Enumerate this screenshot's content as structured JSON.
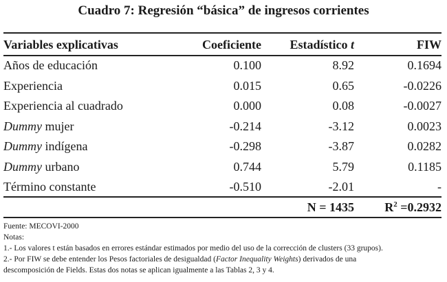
{
  "title": "Cuadro 7: Regresión “básica” de ingresos corrientes",
  "headers": {
    "variables": "Variables explicativas",
    "coef": "Coeficiente",
    "stat_prefix": "Estadístico ",
    "stat_italic": "t",
    "fiw": "FIW"
  },
  "rows": [
    {
      "var_italic": "",
      "var_text": "Años de educación",
      "coef": "0.100",
      "stat": "8.92",
      "fiw": "0.1694"
    },
    {
      "var_italic": "",
      "var_text": "Experiencia",
      "coef": "0.015",
      "stat": "0.65",
      "fiw": "-0.0226"
    },
    {
      "var_italic": "",
      "var_text": "Experiencia al cuadrado",
      "coef": "0.000",
      "stat": "0.08",
      "fiw": "-0.0027"
    },
    {
      "var_italic": "Dummy",
      "var_text": " mujer",
      "coef": "-0.214",
      "stat": "-3.12",
      "fiw": "0.0023"
    },
    {
      "var_italic": "Dummy",
      "var_text": " indígena",
      "coef": "-0.298",
      "stat": "-3.87",
      "fiw": "0.0282"
    },
    {
      "var_italic": "Dummy",
      "var_text": " urbano",
      "coef": "0.744",
      "stat": "5.79",
      "fiw": "0.1185"
    },
    {
      "var_italic": "",
      "var_text": "Término constante",
      "coef": "-0.510",
      "stat": "-2.01",
      "fiw": "-"
    }
  ],
  "summary": {
    "n": "N = 1435",
    "r2_prefix": "R",
    "r2_sup": "2",
    "r2_value": " =0.2932"
  },
  "notes": {
    "source": "Fuente: MECOVI-2000",
    "heading": "Notas:",
    "note1": "1.- Los valores t están basados en errores estándar estimados por medio del uso de la corrección de clusters (33 grupos).",
    "note2_a": "2.- Por FIW se debe entender los Pesos factoriales de desigualdad (",
    "note2_italic": "Factor Inequality Weights",
    "note2_b": ") derivados de una",
    "note2_line2": "descomposición de Fields. Estas dos notas se aplican igualmente a las Tablas 2, 3 y 4."
  }
}
